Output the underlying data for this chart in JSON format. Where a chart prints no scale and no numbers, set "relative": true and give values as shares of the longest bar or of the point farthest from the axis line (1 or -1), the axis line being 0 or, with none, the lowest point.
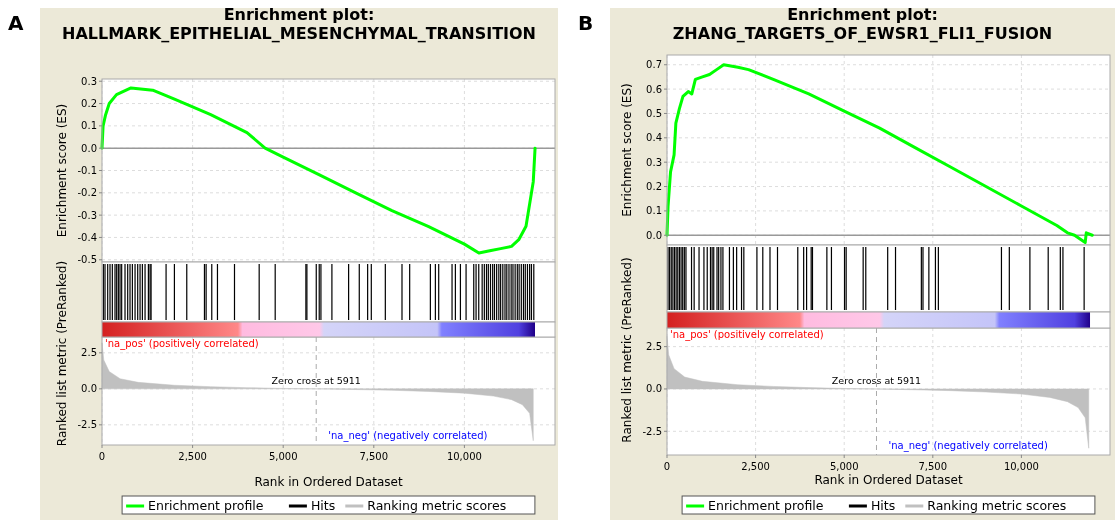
{
  "chart_data": [
    {
      "type": "line",
      "title": "Enrichment plot: HALLMARK_EPITHELIAL_MESENCHYMAL_TRANSITION",
      "ylabel": "Enrichment score (ES)",
      "annotations": [
        "A"
      ],
      "xlim": [
        0,
        12500
      ],
      "ylim": [
        -0.51,
        0.31
      ],
      "xticks": [
        {
          "value": 0,
          "label": null
        },
        {
          "value": 2500,
          "label": null
        },
        {
          "value": 5000,
          "label": null
        },
        {
          "value": 7500,
          "label": null
        },
        {
          "value": 10000,
          "label": null
        }
      ],
      "yticks": [
        {
          "value": 0.3,
          "label": "0.3"
        },
        {
          "value": 0.2,
          "label": "0.2"
        },
        {
          "value": 0.1,
          "label": "0.1"
        },
        {
          "value": 0,
          "label": "0.0"
        },
        {
          "value": -0.1,
          "label": "-0.1"
        },
        {
          "value": -0.2,
          "label": "-0.2"
        },
        {
          "value": -0.3,
          "label": "-0.3"
        },
        {
          "value": -0.4,
          "label": "-0.4"
        },
        {
          "value": -0.5,
          "label": "-0.5"
        }
      ],
      "tick_labels": "y",
      "grid": true,
      "legend": "bottom",
      "ref_lines": [
        {
          "axis": "y",
          "value": 0,
          "color": "#999999",
          "line_style": "solid"
        }
      ],
      "series": [
        {
          "name": "Enrichment profile",
          "color": "#00ff00",
          "x": [
            0,
            30,
            100,
            200,
            400,
            800,
            1400,
            2000,
            3000,
            4000,
            4500,
            5000,
            6000,
            7000,
            8000,
            9000,
            10000,
            10400,
            10700,
            11000,
            11300,
            11500,
            11700,
            11800,
            11900,
            11950
          ],
          "values": [
            0,
            0.1,
            0.15,
            0.2,
            0.24,
            0.27,
            0.26,
            0.22,
            0.15,
            0.07,
            0,
            -0.04,
            -0.12,
            -0.2,
            -0.28,
            -0.35,
            -0.43,
            -0.47,
            -0.46,
            -0.45,
            -0.44,
            -0.41,
            -0.35,
            -0.25,
            -0.15,
            0
          ]
        }
      ]
    },
    {
      "type": "bar",
      "relative": true,
      "xlim": [
        0,
        12500
      ],
      "tick_labels": false,
      "legend": "bottom",
      "series": [
        {
          "name": "Hits",
          "color": "#000000",
          "x": [
            37,
            83,
            157,
            221,
            285,
            359,
            405,
            451,
            497,
            543,
            635,
            709,
            773,
            838,
            912,
            985,
            1050,
            1114,
            1188,
            1280,
            1326,
            1354,
            1768,
            1998,
            2339,
            2827,
            2873,
            3029,
            3186,
            3656,
            4337,
            4779,
            5626,
            5654,
            5912,
            5994,
            6041,
            6344,
            6805,
            7099,
            7330,
            7431,
            7818,
            8278,
            8490,
            9061,
            9199,
            9291,
            9659,
            9751,
            9890,
            10046,
            10258,
            10322,
            10396,
            10490,
            10550,
            10610,
            10660,
            10720,
            10780,
            10830,
            10890,
            10950,
            11000,
            11060,
            11120,
            11170,
            11230,
            11290,
            11340,
            11400,
            11460,
            11510,
            11570,
            11630,
            11680,
            11740,
            11800,
            11850,
            11915
          ],
          "values": [
            1,
            1,
            1,
            1,
            1,
            1,
            1,
            1,
            1,
            1,
            1,
            1,
            1,
            1,
            1,
            1,
            1,
            1,
            1,
            1,
            1,
            1,
            1,
            1,
            1,
            1,
            1,
            1,
            1,
            1,
            1,
            1,
            1,
            1,
            1,
            1,
            1,
            1,
            1,
            1,
            1,
            1,
            1,
            1,
            1,
            1,
            1,
            1,
            1,
            1,
            1,
            1,
            1,
            1,
            1,
            1,
            1,
            1,
            1,
            1,
            1,
            1,
            1,
            1,
            1,
            1,
            1,
            1,
            1,
            1,
            1,
            1,
            1,
            1,
            1,
            1,
            1,
            1,
            1,
            1,
            1
          ]
        }
      ]
    },
    {
      "type": "area",
      "xlabel": "Rank in Ordered Dataset",
      "ylabel": "Ranked list metric (PreRanked)",
      "annotations": [
        "'na_pos' (positively correlated)",
        "'na_neg' (negatively correlated)"
      ],
      "xlim": [
        0,
        12500
      ],
      "ylim": [
        -3.9,
        3.6
      ],
      "xticks": [
        {
          "value": 0,
          "label": "0"
        },
        {
          "value": 2500,
          "label": "2,500"
        },
        {
          "value": 5000,
          "label": "5,000"
        },
        {
          "value": 7500,
          "label": "7,500"
        },
        {
          "value": 10000,
          "label": "10,000"
        }
      ],
      "yticks": [
        {
          "value": 2.5,
          "label": "2.5"
        },
        {
          "value": 0,
          "label": "0.0"
        },
        {
          "value": -2.5,
          "label": "-2.5"
        }
      ],
      "grid": true,
      "legend": "bottom",
      "ref_lines": [
        {
          "axis": "x",
          "value": 5911,
          "label": "Zero cross at 5911",
          "color": "#aaaaaa",
          "line_style": "dashed"
        }
      ],
      "series": [
        {
          "name": "Ranking metric scores",
          "color": "#c0c0c0",
          "x": [
            0,
            50,
            200,
            500,
            1000,
            2000,
            3000,
            4000,
            5000,
            5911,
            7000,
            8000,
            9000,
            10000,
            10800,
            11300,
            11600,
            11800,
            11900
          ],
          "values": [
            3.2,
            2.0,
            1.2,
            0.7,
            0.45,
            0.25,
            0.15,
            0.08,
            0.03,
            0,
            -0.05,
            -0.1,
            -0.18,
            -0.3,
            -0.5,
            -0.75,
            -1.1,
            -1.7,
            -3.6
          ]
        }
      ]
    },
    {
      "type": "line",
      "title": "Enrichment plot: ZHANG_TARGETS_OF_EWSR1_FLI1_FUSION",
      "ylabel": "Enrichment score (ES)",
      "annotations": [
        "B"
      ],
      "xlim": [
        0,
        12500
      ],
      "ylim": [
        -0.04,
        0.74
      ],
      "xticks": [
        {
          "value": 0,
          "label": null
        },
        {
          "value": 2500,
          "label": null
        },
        {
          "value": 5000,
          "label": null
        },
        {
          "value": 7500,
          "label": null
        },
        {
          "value": 10000,
          "label": null
        }
      ],
      "yticks": [
        {
          "value": 0.7,
          "label": "0.7"
        },
        {
          "value": 0.6,
          "label": "0.6"
        },
        {
          "value": 0.5,
          "label": "0.5"
        },
        {
          "value": 0.4,
          "label": "0.4"
        },
        {
          "value": 0.3,
          "label": "0.3"
        },
        {
          "value": 0.2,
          "label": "0.2"
        },
        {
          "value": 0.1,
          "label": "0.1"
        },
        {
          "value": 0,
          "label": "0.0"
        }
      ],
      "tick_labels": "y",
      "grid": true,
      "legend": "bottom",
      "ref_lines": [
        {
          "axis": "y",
          "value": 0,
          "color": "#999999",
          "line_style": "solid"
        }
      ],
      "series": [
        {
          "name": "Enrichment profile",
          "color": "#00ff00",
          "x": [
            0,
            30,
            60,
            100,
            200,
            250,
            350,
            450,
            600,
            700,
            800,
            1000,
            1200,
            1400,
            1600,
            2000,
            2300,
            3000,
            4000,
            5000,
            6000,
            7000,
            8000,
            9000,
            10000,
            10500,
            11000,
            11300,
            11500,
            11800,
            11830,
            12000
          ],
          "values": [
            0,
            0.12,
            0.18,
            0.26,
            0.33,
            0.46,
            0.52,
            0.57,
            0.59,
            0.58,
            0.64,
            0.65,
            0.66,
            0.68,
            0.7,
            0.69,
            0.68,
            0.64,
            0.58,
            0.51,
            0.44,
            0.36,
            0.28,
            0.2,
            0.12,
            0.08,
            0.04,
            0.01,
            0,
            -0.03,
            0.01,
            0
          ]
        }
      ]
    },
    {
      "type": "bar",
      "relative": true,
      "xlim": [
        0,
        12500
      ],
      "tick_labels": false,
      "legend": "bottom",
      "series": [
        {
          "name": "Hits",
          "color": "#000000",
          "x": [
            28,
            74,
            120,
            166,
            212,
            258,
            304,
            351,
            397,
            443,
            489,
            535,
            692,
            766,
            904,
            1042,
            1135,
            1227,
            1273,
            1319,
            1411,
            1458,
            1522,
            1578,
            1762,
            1873,
            1965,
            2103,
            2168,
            2537,
            2703,
            2906,
            3118,
            3690,
            3856,
            3939,
            4068,
            4105,
            4511,
            4640,
            5009,
            5055,
            5535,
            5609,
            6227,
            6448,
            7177,
            7223,
            7389,
            7574,
            7657,
            9437,
            9659,
            10240,
            10756,
            11098,
            11172,
            11770
          ],
          "values": [
            1,
            1,
            1,
            1,
            1,
            1,
            1,
            1,
            1,
            1,
            1,
            1,
            1,
            1,
            1,
            1,
            1,
            1,
            1,
            1,
            1,
            1,
            1,
            1,
            1,
            1,
            1,
            1,
            1,
            1,
            1,
            1,
            1,
            1,
            1,
            1,
            1,
            1,
            1,
            1,
            1,
            1,
            1,
            1,
            1,
            1,
            1,
            1,
            1,
            1,
            1,
            1,
            1,
            1,
            1,
            1,
            1,
            1
          ]
        }
      ]
    },
    {
      "type": "area",
      "xlabel": "Rank in Ordered Dataset",
      "ylabel": "Ranked list metric (PreRanked)",
      "annotations": [
        "'na_pos' (positively correlated)",
        "'na_neg' (negatively correlated)"
      ],
      "xlim": [
        0,
        12500
      ],
      "ylim": [
        -3.9,
        3.6
      ],
      "xticks": [
        {
          "value": 0,
          "label": "0"
        },
        {
          "value": 2500,
          "label": "2,500"
        },
        {
          "value": 5000,
          "label": "5,000"
        },
        {
          "value": 7500,
          "label": "7,500"
        },
        {
          "value": 10000,
          "label": "10,000"
        }
      ],
      "yticks": [
        {
          "value": 2.5,
          "label": "2.5"
        },
        {
          "value": 0,
          "label": "0.0"
        },
        {
          "value": -2.5,
          "label": "-2.5"
        }
      ],
      "grid": true,
      "legend": "bottom",
      "ref_lines": [
        {
          "axis": "x",
          "value": 5911,
          "label": "Zero cross at 5911",
          "color": "#aaaaaa",
          "line_style": "dashed"
        }
      ],
      "series": [
        {
          "name": "Ranking metric scores",
          "color": "#c0c0c0",
          "x": [
            0,
            50,
            200,
            500,
            1000,
            2000,
            3000,
            4000,
            5000,
            5911,
            7000,
            8000,
            9000,
            10000,
            10800,
            11300,
            11600,
            11800,
            11900
          ],
          "values": [
            3.1,
            2.0,
            1.2,
            0.7,
            0.45,
            0.25,
            0.15,
            0.08,
            0.03,
            0,
            -0.05,
            -0.1,
            -0.18,
            -0.3,
            -0.5,
            -0.75,
            -1.1,
            -1.7,
            -3.5
          ]
        }
      ]
    }
  ]
}
